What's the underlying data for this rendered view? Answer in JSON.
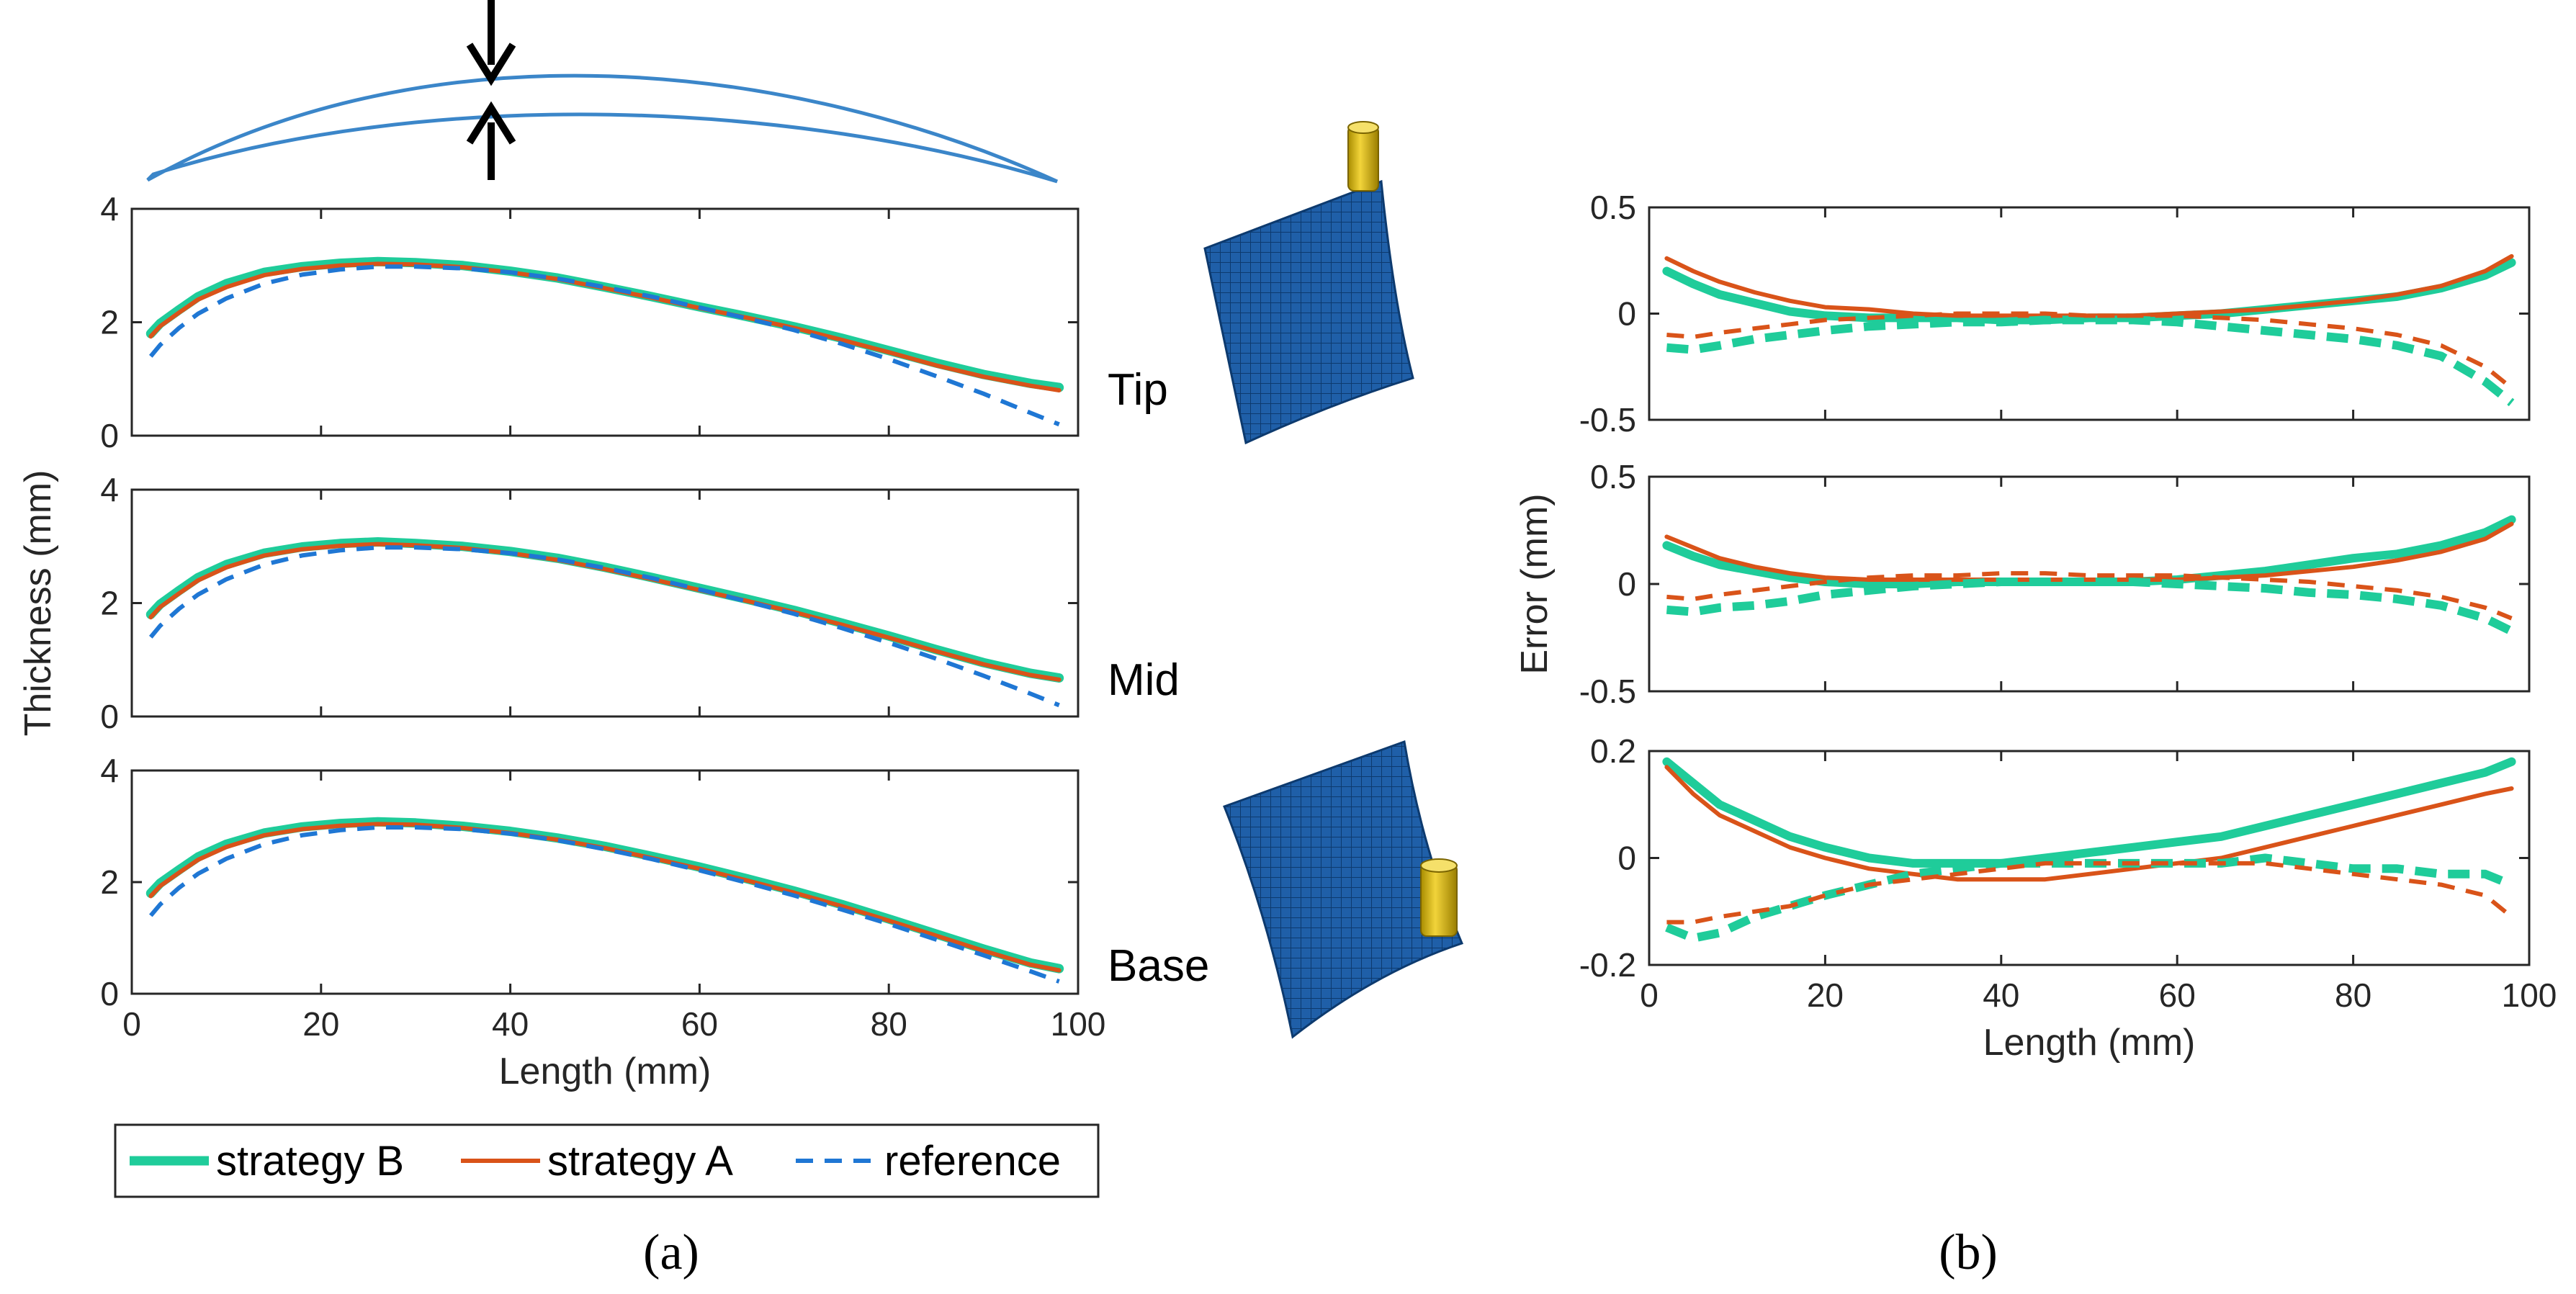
{
  "colors": {
    "strategy_b": "#1fcc9a",
    "strategy_a": "#d95319",
    "reference": "#1f77d4",
    "profile": "#3b86c9",
    "mesh": "#1f5fa8",
    "tool": "#e3c21a"
  },
  "icons": [
    "blade-profile-outline",
    "arrow-down-icon",
    "arrow-up-icon",
    "tip-mesh-plate",
    "base-mesh-plate",
    "tool-cylinder-icon"
  ],
  "panel_labels": {
    "a": "(a)",
    "b": "(b)"
  },
  "legend": {
    "entries": [
      {
        "label": "strategy B",
        "style": "thick-solid"
      },
      {
        "label": "strategy A",
        "style": "solid"
      },
      {
        "label": "reference",
        "style": "dashed"
      }
    ]
  },
  "chart_data": [
    {
      "id": "thickness-tip",
      "type": "line",
      "row_label": "Tip",
      "xlabel": "",
      "ylabel": "",
      "xlim": [
        0,
        100
      ],
      "ylim": [
        0,
        4
      ],
      "xticks": [],
      "yticks": [
        "0",
        "2",
        "4"
      ],
      "x": [
        2,
        3,
        5,
        7,
        10,
        14,
        18,
        22,
        26,
        30,
        35,
        40,
        45,
        50,
        55,
        60,
        65,
        70,
        75,
        80,
        85,
        90,
        95,
        98
      ],
      "series": [
        {
          "name": "strategy B",
          "values": [
            1.8,
            1.98,
            2.22,
            2.45,
            2.68,
            2.88,
            2.98,
            3.04,
            3.07,
            3.05,
            3.0,
            2.9,
            2.78,
            2.62,
            2.45,
            2.27,
            2.1,
            1.92,
            1.72,
            1.5,
            1.28,
            1.08,
            0.92,
            0.85
          ]
        },
        {
          "name": "strategy A",
          "values": [
            1.75,
            1.93,
            2.17,
            2.4,
            2.62,
            2.83,
            2.94,
            3.0,
            3.03,
            3.02,
            2.97,
            2.88,
            2.76,
            2.6,
            2.43,
            2.25,
            2.08,
            1.9,
            1.69,
            1.47,
            1.24,
            1.04,
            0.88,
            0.8
          ]
        },
        {
          "name": "reference",
          "values": [
            1.4,
            1.6,
            1.9,
            2.15,
            2.42,
            2.68,
            2.84,
            2.93,
            2.98,
            2.98,
            2.95,
            2.88,
            2.77,
            2.62,
            2.45,
            2.26,
            2.07,
            1.86,
            1.62,
            1.35,
            1.05,
            0.74,
            0.4,
            0.2
          ]
        }
      ]
    },
    {
      "id": "thickness-mid",
      "type": "line",
      "row_label": "Mid",
      "xlabel": "",
      "ylabel": "Thickness (mm)",
      "xlim": [
        0,
        100
      ],
      "ylim": [
        0,
        4
      ],
      "xticks": [],
      "yticks": [
        "0",
        "2",
        "4"
      ],
      "x": [
        2,
        3,
        5,
        7,
        10,
        14,
        18,
        22,
        26,
        30,
        35,
        40,
        45,
        50,
        55,
        60,
        65,
        70,
        75,
        80,
        85,
        90,
        95,
        98
      ],
      "series": [
        {
          "name": "strategy B",
          "values": [
            1.8,
            1.98,
            2.22,
            2.45,
            2.68,
            2.88,
            2.99,
            3.05,
            3.08,
            3.05,
            3.0,
            2.91,
            2.79,
            2.63,
            2.45,
            2.26,
            2.07,
            1.87,
            1.65,
            1.42,
            1.18,
            0.95,
            0.76,
            0.68
          ]
        },
        {
          "name": "strategy A",
          "values": [
            1.75,
            1.93,
            2.17,
            2.4,
            2.63,
            2.84,
            2.95,
            3.01,
            3.04,
            3.02,
            2.97,
            2.88,
            2.76,
            2.6,
            2.42,
            2.23,
            2.04,
            1.84,
            1.62,
            1.39,
            1.15,
            0.92,
            0.73,
            0.65
          ]
        },
        {
          "name": "reference",
          "values": [
            1.4,
            1.6,
            1.9,
            2.15,
            2.42,
            2.68,
            2.84,
            2.93,
            2.98,
            2.98,
            2.95,
            2.88,
            2.77,
            2.62,
            2.44,
            2.24,
            2.03,
            1.81,
            1.56,
            1.3,
            1.02,
            0.72,
            0.4,
            0.2
          ]
        }
      ]
    },
    {
      "id": "thickness-base",
      "type": "line",
      "row_label": "Base",
      "xlabel": "Length (mm)",
      "ylabel": "",
      "xlim": [
        0,
        100
      ],
      "ylim": [
        0,
        4
      ],
      "xticks": [
        "0",
        "20",
        "40",
        "60",
        "80",
        "100"
      ],
      "yticks": [
        "0",
        "2",
        "4"
      ],
      "x": [
        2,
        3,
        5,
        7,
        10,
        14,
        18,
        22,
        26,
        30,
        35,
        40,
        45,
        50,
        55,
        60,
        65,
        70,
        75,
        80,
        85,
        90,
        95,
        98
      ],
      "series": [
        {
          "name": "strategy B",
          "values": [
            1.8,
            1.98,
            2.22,
            2.45,
            2.68,
            2.88,
            2.99,
            3.05,
            3.08,
            3.06,
            3.0,
            2.91,
            2.79,
            2.64,
            2.46,
            2.27,
            2.06,
            1.84,
            1.6,
            1.34,
            1.07,
            0.8,
            0.55,
            0.45
          ]
        },
        {
          "name": "strategy A",
          "values": [
            1.75,
            1.93,
            2.17,
            2.4,
            2.63,
            2.84,
            2.95,
            3.01,
            3.04,
            3.03,
            2.97,
            2.88,
            2.76,
            2.61,
            2.43,
            2.24,
            2.03,
            1.81,
            1.57,
            1.31,
            1.04,
            0.77,
            0.52,
            0.42
          ]
        },
        {
          "name": "reference",
          "values": [
            1.4,
            1.6,
            1.9,
            2.15,
            2.42,
            2.68,
            2.84,
            2.93,
            2.98,
            2.98,
            2.95,
            2.87,
            2.75,
            2.59,
            2.41,
            2.21,
            1.99,
            1.76,
            1.51,
            1.25,
            0.97,
            0.69,
            0.4,
            0.22
          ]
        }
      ]
    },
    {
      "id": "error-tip",
      "type": "line",
      "xlabel": "",
      "ylabel": "",
      "xlim": [
        0,
        100
      ],
      "ylim": [
        -0.5,
        0.5
      ],
      "xticks": [],
      "yticks": [
        "-0.5",
        "0",
        "0.5"
      ],
      "x": [
        2,
        5,
        8,
        12,
        16,
        20,
        25,
        30,
        35,
        40,
        45,
        50,
        55,
        60,
        65,
        70,
        75,
        80,
        85,
        90,
        95,
        98
      ],
      "series": [
        {
          "name": "strategy B (thickness)",
          "style": "thick-solid",
          "values": [
            0.2,
            0.14,
            0.09,
            0.05,
            0.01,
            -0.01,
            -0.02,
            -0.02,
            -0.02,
            -0.03,
            -0.03,
            -0.02,
            -0.02,
            -0.01,
            0.0,
            0.02,
            0.04,
            0.06,
            0.08,
            0.12,
            0.18,
            0.24
          ]
        },
        {
          "name": "strategy A (thickness)",
          "style": "solid",
          "values": [
            0.26,
            0.2,
            0.15,
            0.1,
            0.06,
            0.03,
            0.02,
            0.0,
            -0.01,
            -0.01,
            -0.01,
            -0.01,
            -0.01,
            0.0,
            0.01,
            0.02,
            0.04,
            0.06,
            0.09,
            0.13,
            0.2,
            0.27
          ]
        },
        {
          "name": "strategy B (thickness)",
          "style": "thick-dashed",
          "values": [
            -0.16,
            -0.17,
            -0.15,
            -0.12,
            -0.1,
            -0.08,
            -0.06,
            -0.05,
            -0.04,
            -0.04,
            -0.03,
            -0.03,
            -0.03,
            -0.04,
            -0.06,
            -0.08,
            -0.1,
            -0.12,
            -0.15,
            -0.2,
            -0.32,
            -0.42
          ]
        },
        {
          "name": "strategy A (thickness)",
          "style": "dashed",
          "values": [
            -0.1,
            -0.11,
            -0.09,
            -0.07,
            -0.05,
            -0.03,
            -0.02,
            -0.01,
            0.0,
            0.0,
            0.0,
            -0.01,
            -0.01,
            -0.01,
            -0.02,
            -0.03,
            -0.05,
            -0.07,
            -0.1,
            -0.15,
            -0.25,
            -0.35
          ]
        }
      ]
    },
    {
      "id": "error-mid",
      "type": "line",
      "xlabel": "",
      "ylabel": "Error (mm)",
      "xlim": [
        0,
        100
      ],
      "ylim": [
        -0.5,
        0.5
      ],
      "xticks": [],
      "yticks": [
        "-0.5",
        "0",
        "0.5"
      ],
      "x": [
        2,
        5,
        8,
        12,
        16,
        20,
        25,
        30,
        35,
        40,
        45,
        50,
        55,
        60,
        65,
        70,
        75,
        80,
        85,
        90,
        95,
        98
      ],
      "series": [
        {
          "name": "strategy B (thickness)",
          "style": "thick-solid",
          "values": [
            0.18,
            0.13,
            0.09,
            0.06,
            0.03,
            0.01,
            0.0,
            0.0,
            0.01,
            0.01,
            0.01,
            0.01,
            0.01,
            0.02,
            0.04,
            0.06,
            0.09,
            0.12,
            0.14,
            0.18,
            0.24,
            0.3
          ]
        },
        {
          "name": "strategy A (thickness)",
          "style": "solid",
          "values": [
            0.22,
            0.17,
            0.12,
            0.08,
            0.05,
            0.03,
            0.02,
            0.02,
            0.02,
            0.02,
            0.02,
            0.02,
            0.02,
            0.02,
            0.03,
            0.04,
            0.06,
            0.08,
            0.11,
            0.15,
            0.21,
            0.28
          ]
        },
        {
          "name": "strategy B (thickness)",
          "style": "thick-dashed",
          "values": [
            -0.12,
            -0.13,
            -0.11,
            -0.1,
            -0.08,
            -0.05,
            -0.03,
            -0.01,
            0.0,
            0.01,
            0.01,
            0.01,
            0.01,
            0.0,
            -0.01,
            -0.02,
            -0.04,
            -0.05,
            -0.07,
            -0.1,
            -0.16,
            -0.22
          ]
        },
        {
          "name": "strategy A (thickness)",
          "style": "dashed",
          "values": [
            -0.06,
            -0.07,
            -0.05,
            -0.03,
            -0.01,
            0.01,
            0.03,
            0.04,
            0.04,
            0.05,
            0.05,
            0.04,
            0.04,
            0.04,
            0.03,
            0.02,
            0.01,
            -0.01,
            -0.03,
            -0.06,
            -0.11,
            -0.16
          ]
        }
      ]
    },
    {
      "id": "error-base",
      "type": "line",
      "xlabel": "Length (mm)",
      "ylabel": "",
      "xlim": [
        0,
        100
      ],
      "ylim": [
        -0.2,
        0.2
      ],
      "xticks": [
        "0",
        "20",
        "40",
        "60",
        "80",
        "100"
      ],
      "yticks": [
        "-0.2",
        "0",
        "0.2"
      ],
      "x": [
        2,
        5,
        8,
        12,
        16,
        20,
        25,
        30,
        35,
        40,
        45,
        50,
        55,
        60,
        65,
        70,
        75,
        80,
        85,
        90,
        95,
        98
      ],
      "series": [
        {
          "name": "strategy B (thickness)",
          "style": "thick-solid",
          "values": [
            0.18,
            0.14,
            0.1,
            0.07,
            0.04,
            0.02,
            0.0,
            -0.01,
            -0.01,
            -0.01,
            0.0,
            0.01,
            0.02,
            0.03,
            0.04,
            0.06,
            0.08,
            0.1,
            0.12,
            0.14,
            0.16,
            0.18
          ]
        },
        {
          "name": "strategy A (thickness)",
          "style": "solid",
          "values": [
            0.17,
            0.12,
            0.08,
            0.05,
            0.02,
            0.0,
            -0.02,
            -0.03,
            -0.04,
            -0.04,
            -0.04,
            -0.03,
            -0.02,
            -0.01,
            0.0,
            0.02,
            0.04,
            0.06,
            0.08,
            0.1,
            0.12,
            0.13
          ]
        },
        {
          "name": "strategy B (thickness)",
          "style": "thick-dashed",
          "values": [
            -0.13,
            -0.15,
            -0.14,
            -0.11,
            -0.09,
            -0.07,
            -0.05,
            -0.03,
            -0.02,
            -0.01,
            -0.01,
            -0.01,
            -0.01,
            -0.01,
            -0.01,
            0.0,
            -0.01,
            -0.02,
            -0.02,
            -0.03,
            -0.03,
            -0.05
          ]
        },
        {
          "name": "strategy A (thickness)",
          "style": "dashed",
          "values": [
            -0.12,
            -0.12,
            -0.11,
            -0.1,
            -0.09,
            -0.07,
            -0.05,
            -0.04,
            -0.03,
            -0.02,
            -0.01,
            -0.01,
            -0.01,
            -0.01,
            -0.01,
            -0.01,
            -0.02,
            -0.03,
            -0.04,
            -0.05,
            -0.07,
            -0.11
          ]
        }
      ]
    }
  ]
}
